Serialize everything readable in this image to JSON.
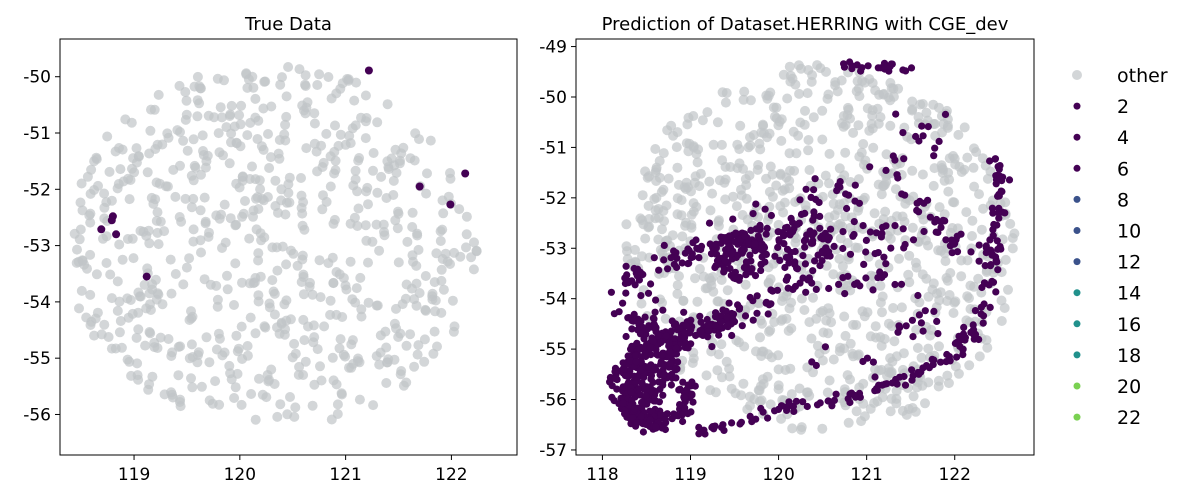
{
  "chart_data": [
    {
      "type": "scatter",
      "title": "True Data",
      "xlim": [
        118.3,
        122.62
      ],
      "ylim": [
        -56.72,
        -49.33
      ],
      "xticks": [
        119,
        120,
        121,
        122
      ],
      "yticks": [
        -56,
        -55,
        -54,
        -53,
        -52,
        -51,
        -50
      ],
      "xtick_labels": [
        "119",
        "120",
        "121",
        "122"
      ],
      "ytick_labels": [
        "-56",
        "-55",
        "-54",
        "-53",
        "-52",
        "-51",
        "-50"
      ],
      "grid": false,
      "ellipse_cloud": {
        "center": [
          120.3,
          -53.02
        ],
        "rx": 1.95,
        "ry": 3.22,
        "angle_deg": -33,
        "count": 700,
        "seed": 11
      },
      "series": [
        {
          "name": "other",
          "color": "#c0c4c8",
          "opacity": 0.7,
          "marker_radius": 5,
          "points": []
        },
        {
          "name": "2",
          "color": "#440154",
          "marker_radius": 4,
          "points": [
            [
              121.22,
              -49.89
            ],
            [
              121.7,
              -51.95
            ],
            [
              122.13,
              -51.72
            ],
            [
              121.99,
              -52.27
            ],
            [
              118.8,
              -52.48
            ],
            [
              118.79,
              -52.55
            ],
            [
              118.69,
              -52.71
            ],
            [
              118.83,
              -52.8
            ],
            [
              119.12,
              -53.55
            ]
          ]
        }
      ]
    },
    {
      "type": "scatter",
      "title": "Prediction of Dataset.HERRING with CGE_dev",
      "xlim": [
        117.7,
        122.9
      ],
      "ylim": [
        -57.1,
        -48.85
      ],
      "xticks": [
        118,
        119,
        120,
        121,
        122
      ],
      "yticks": [
        -57,
        -56,
        -55,
        -54,
        -53,
        -52,
        -51,
        -50,
        -49
      ],
      "xtick_labels": [
        "118",
        "119",
        "120",
        "121",
        "122"
      ],
      "ytick_labels": [
        "-57",
        "-56",
        "-55",
        "-54",
        "-53",
        "-52",
        "-51",
        "-50",
        "-49"
      ],
      "grid": false,
      "ellipse_cloud": {
        "center": [
          120.48,
          -53.0
        ],
        "rx": 2.25,
        "ry": 3.62,
        "angle_deg": -33,
        "count": 900,
        "seed": 29
      },
      "predicted_cluster": {
        "color": "#440154",
        "marker_radius": 3.6,
        "paths": [
          {
            "points": [
              [
                118.2,
                -55.6
              ],
              [
                118.3,
                -56.2
              ],
              [
                118.55,
                -56.55
              ],
              [
                118.9,
                -56.2
              ],
              [
                119.0,
                -55.7
              ]
            ],
            "n": 120,
            "spread": 0.07
          },
          {
            "points": [
              [
                118.25,
                -55.5
              ],
              [
                118.6,
                -55.0
              ],
              [
                119.0,
                -54.6
              ],
              [
                119.5,
                -54.4
              ]
            ],
            "n": 110,
            "spread": 0.12
          },
          {
            "points": [
              [
                118.2,
                -53.8
              ],
              [
                118.6,
                -53.3
              ],
              [
                119.1,
                -53.1
              ],
              [
                119.5,
                -52.75
              ],
              [
                120.0,
                -52.6
              ],
              [
                120.5,
                -52.55
              ]
            ],
            "n": 110,
            "spread": 0.14
          },
          {
            "points": [
              [
                118.3,
                -54.3
              ],
              [
                118.6,
                -54.6
              ],
              [
                119.1,
                -54.7
              ],
              [
                119.5,
                -54.3
              ],
              [
                119.9,
                -53.9
              ],
              [
                120.4,
                -53.6
              ],
              [
                120.9,
                -53.7
              ],
              [
                121.4,
                -53.4
              ]
            ],
            "n": 110,
            "spread": 0.14
          },
          {
            "points": [
              [
                119.1,
                -56.65
              ],
              [
                119.6,
                -56.4
              ],
              [
                120.1,
                -56.15
              ],
              [
                120.6,
                -56.05
              ],
              [
                121.1,
                -55.8
              ],
              [
                121.5,
                -55.5
              ],
              [
                122.0,
                -55.1
              ],
              [
                122.25,
                -54.5
              ],
              [
                122.4,
                -53.7
              ],
              [
                122.4,
                -53.0
              ],
              [
                122.5,
                -52.3
              ],
              [
                122.52,
                -51.6
              ],
              [
                122.45,
                -51.0
              ]
            ],
            "n": 170,
            "spread": 0.06
          },
          {
            "points": [
              [
                120.0,
                -52.3
              ],
              [
                120.6,
                -52.0
              ],
              [
                121.1,
                -51.6
              ],
              [
                121.5,
                -51.0
              ],
              [
                121.9,
                -50.6
              ]
            ],
            "n": 40,
            "spread": 0.22
          },
          {
            "points": [
              [
                120.7,
                -49.35
              ],
              [
                121.1,
                -49.4
              ],
              [
                121.5,
                -49.45
              ]
            ],
            "n": 22,
            "spread": 0.05
          },
          {
            "points": [
              [
                121.5,
                -51.9
              ],
              [
                121.7,
                -52.3
              ],
              [
                121.9,
                -52.7
              ],
              [
                122.05,
                -53.1
              ]
            ],
            "n": 30,
            "spread": 0.08
          },
          {
            "points": [
              [
                120.2,
                -55.0
              ],
              [
                120.8,
                -55.3
              ],
              [
                121.3,
                -54.7
              ],
              [
                121.8,
                -54.2
              ]
            ],
            "n": 20,
            "spread": 0.25
          }
        ],
        "blobs": [
          {
            "center": [
              118.55,
              -55.25
            ],
            "r": [
              0.32,
              0.75
            ],
            "n": 140
          },
          {
            "center": [
              119.55,
              -53.15
            ],
            "r": [
              0.32,
              0.5
            ],
            "n": 95
          },
          {
            "center": [
              120.3,
              -53.05
            ],
            "r": [
              0.38,
              0.42
            ],
            "n": 45
          },
          {
            "center": [
              118.45,
              -56.1
            ],
            "r": [
              0.22,
              0.42
            ],
            "n": 90
          },
          {
            "center": [
              121.0,
              -52.9
            ],
            "r": [
              0.55,
              0.45
            ],
            "n": 30
          }
        ],
        "seed": 73
      }
    }
  ],
  "legend": {
    "placement": "right",
    "items": [
      {
        "label": "other",
        "color": "#c0c4c8",
        "opacity": 0.7,
        "radius": 5
      },
      {
        "label": "2",
        "color": "#440154",
        "radius": 3.5
      },
      {
        "label": "4",
        "color": "#440154",
        "radius": 3.5
      },
      {
        "label": "6",
        "color": "#440154",
        "radius": 3.5
      },
      {
        "label": "8",
        "color": "#3b528b",
        "radius": 3.5
      },
      {
        "label": "10",
        "color": "#3b528b",
        "radius": 3.5
      },
      {
        "label": "12",
        "color": "#3b528b",
        "radius": 3.5
      },
      {
        "label": "14",
        "color": "#21918c",
        "radius": 3.5
      },
      {
        "label": "16",
        "color": "#21918c",
        "radius": 3.5
      },
      {
        "label": "18",
        "color": "#21918c",
        "radius": 3.5
      },
      {
        "label": "20",
        "color": "#7ad151",
        "radius": 3.5
      },
      {
        "label": "22",
        "color": "#7ad151",
        "radius": 3.5
      }
    ]
  }
}
